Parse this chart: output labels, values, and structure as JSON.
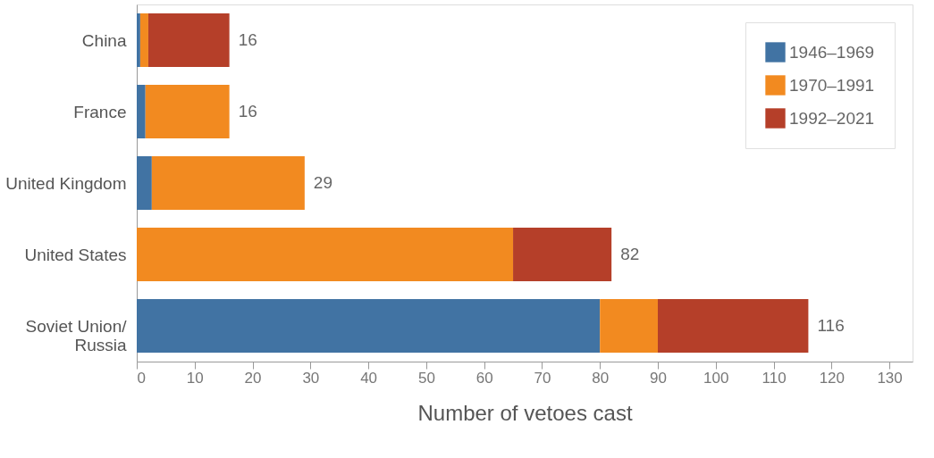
{
  "chart_data": {
    "type": "bar",
    "orientation": "horizontal",
    "stacked": true,
    "xlabel": "Number of vetoes cast",
    "categories": [
      "China",
      "France",
      "United Kingdom",
      "United States",
      "Soviet Union/Russia"
    ],
    "series": [
      {
        "name": "1946–1969",
        "color": "#4173a3",
        "values": [
          0.6,
          1.5,
          2.6,
          0,
          80
        ]
      },
      {
        "name": "1970–1991",
        "color": "#f28a20",
        "values": [
          1.4,
          14.5,
          26.4,
          65,
          10
        ]
      },
      {
        "name": "1992–2021",
        "color": "#b53f29",
        "values": [
          14,
          0,
          0,
          17,
          26
        ]
      }
    ],
    "totals": [
      "16",
      "16",
      "29",
      "82",
      "116"
    ],
    "xlim": [
      0,
      134
    ],
    "xticks": [
      0,
      10,
      20,
      30,
      40,
      50,
      60,
      70,
      80,
      90,
      100,
      110,
      120,
      130
    ],
    "grid": false,
    "legend": "top right"
  }
}
